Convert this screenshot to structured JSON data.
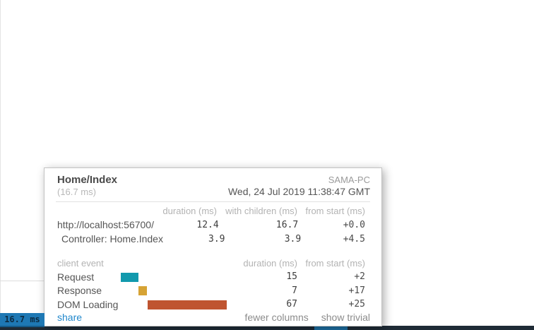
{
  "badge": {
    "label": "16.7 ms"
  },
  "popup": {
    "title": "Home/Index",
    "subtitle": "(16.7 ms)",
    "machine": "SAMA-PC",
    "timestamp": "Wed, 24 Jul 2019 11:38:47 GMT",
    "timings_table": {
      "headers": {
        "duration": "duration (ms)",
        "with_children": "with children (ms)",
        "from_start": "from start (ms)"
      },
      "rows": [
        {
          "label": "http://localhost:56700/",
          "duration": "12.4",
          "with_children": "16.7",
          "from_start": "+0.0"
        },
        {
          "label": "Controller: Home.Index",
          "duration": "3.9",
          "with_children": "3.9",
          "from_start": "+4.5"
        }
      ]
    },
    "client_table": {
      "header_label": "client event",
      "headers": {
        "duration": "duration (ms)",
        "from_start": "from start (ms)"
      },
      "rows": [
        {
          "label": "Request",
          "duration": "15",
          "from_start": "+2",
          "color": "#1299ad"
        },
        {
          "label": "Response",
          "duration": "7",
          "from_start": "+17",
          "color": "#d6a335"
        },
        {
          "label": "DOM Loading",
          "duration": "67",
          "from_start": "+25",
          "color": "#bf5430"
        }
      ]
    },
    "footer": {
      "share": "share",
      "fewer_columns": "fewer columns",
      "show_trivial": "show trivial"
    }
  },
  "colors": {
    "badge_background": "#1e78b4",
    "link_blue": "#2288cc",
    "request_bar": "#1299ad",
    "response_bar": "#d6a335",
    "dom_loading_bar": "#bf5430",
    "bottom_strip": "#1f2b36",
    "bottom_strip_segment": "#1d6fa3"
  }
}
